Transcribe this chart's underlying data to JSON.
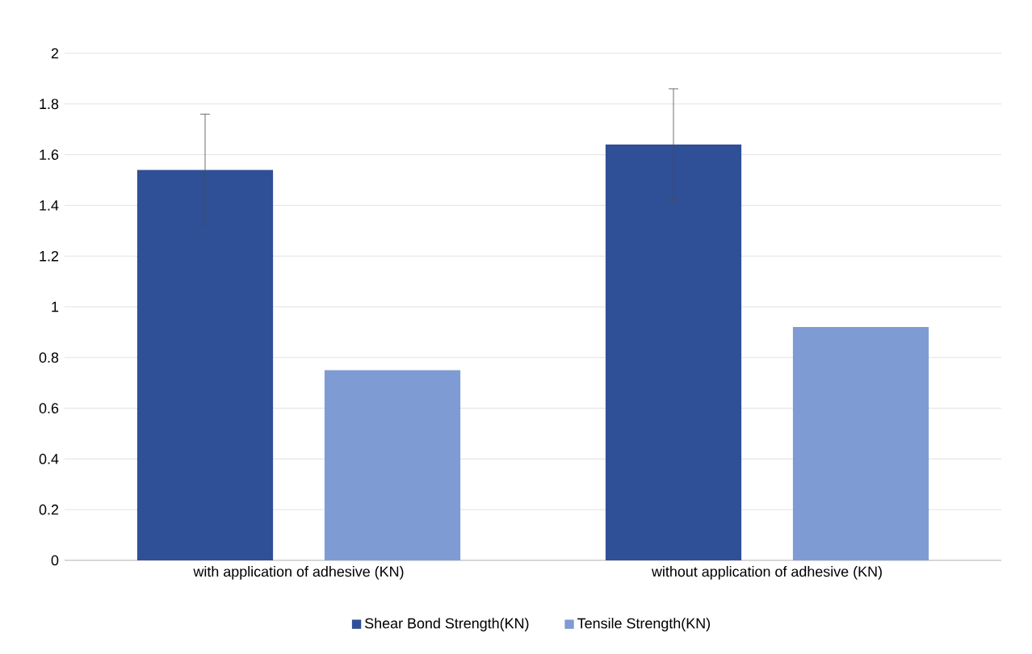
{
  "chart_data": {
    "type": "bar",
    "categories": [
      "with application of adhesive (KN)",
      "without application of adhesive (KN)"
    ],
    "series": [
      {
        "name": "Shear Bond Strength(KN)",
        "color": "#2f4f96",
        "values": [
          1.54,
          1.64
        ],
        "errors": [
          0.22,
          0.22
        ]
      },
      {
        "name": "Tensile Strength(KN)",
        "color": "#7f9bd3",
        "values": [
          0.75,
          0.92
        ]
      }
    ],
    "ylim": [
      0,
      2
    ],
    "yticks": [
      0,
      0.2,
      0.4,
      0.6,
      0.8,
      1,
      1.2,
      1.4,
      1.6,
      1.8,
      2
    ],
    "grid": "y",
    "legend": "bottom"
  }
}
